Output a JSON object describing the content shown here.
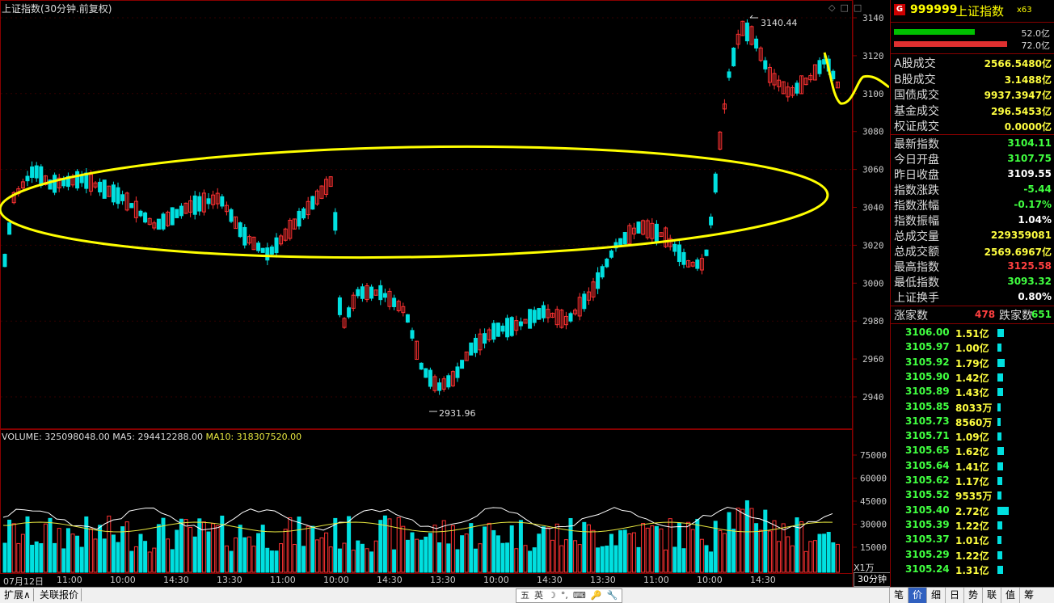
{
  "chart_title": "上证指数(30分钟.前复权)",
  "high_marker": "3140.44",
  "low_marker": "2931.96",
  "price_axis": [
    "3140",
    "3120",
    "3100",
    "3080",
    "3060",
    "3040",
    "3020",
    "3000",
    "2980",
    "2960",
    "2940"
  ],
  "volume_header": {
    "volume": "VOLUME: 325098048.00",
    "ma5": "MA5: 294412288.00",
    "ma10": "MA10: 318307520.00"
  },
  "volume_axis": [
    "75000",
    "60000",
    "45000",
    "30000",
    "15000"
  ],
  "volume_unit": "X1万",
  "time_labels": [
    "07月12日",
    "11:00",
    "10:00",
    "14:30",
    "13:30",
    "11:00",
    "10:00",
    "14:30",
    "13:30",
    "10:00",
    "14:30",
    "13:30",
    "11:00",
    "10:00",
    "14:30"
  ],
  "period_tab": "30分钟",
  "bottom_tabs": [
    "扩展∧",
    "关联报价"
  ],
  "ime_icons": [
    "五",
    "英",
    "☽",
    "°,",
    "⌨",
    "🔑",
    "🔧"
  ],
  "side_tabs": [
    {
      "label": "笔",
      "active": false
    },
    {
      "label": "价",
      "active": true
    },
    {
      "label": "细",
      "active": false
    },
    {
      "label": "日",
      "active": false
    },
    {
      "label": "势",
      "active": false
    },
    {
      "label": "联",
      "active": false
    },
    {
      "label": "值",
      "active": false
    },
    {
      "label": "筹",
      "active": false
    }
  ],
  "corner_icons": "◇□□",
  "panel": {
    "badge": "G",
    "code": "999999",
    "name": "上证指数",
    "suffix": "x63",
    "bar1_value": "52.0亿",
    "bar2_value": "72.0亿",
    "turnover": [
      {
        "label": "A股成交",
        "value": "2566.5480亿"
      },
      {
        "label": "B股成交",
        "value": "3.1488亿"
      },
      {
        "label": "国债成交",
        "value": "9937.3947亿"
      },
      {
        "label": "基金成交",
        "value": "296.5453亿"
      },
      {
        "label": "权证成交",
        "value": "0.0000亿"
      }
    ],
    "stats": [
      {
        "label": "最新指数",
        "value": "3104.11",
        "color": "g"
      },
      {
        "label": "今日开盘",
        "value": "3107.75",
        "color": "g"
      },
      {
        "label": "昨日收盘",
        "value": "3109.55",
        "color": "w"
      },
      {
        "label": "指数涨跌",
        "value": "-5.44",
        "color": "g"
      },
      {
        "label": "指数涨幅",
        "value": "-0.17%",
        "color": "g"
      },
      {
        "label": "指数振幅",
        "value": "1.04%",
        "color": "w"
      },
      {
        "label": "总成交量",
        "value": "229359081",
        "color": "y"
      },
      {
        "label": "总成交额",
        "value": "2569.6967亿",
        "color": "y"
      },
      {
        "label": "最高指数",
        "value": "3125.58",
        "color": "r"
      },
      {
        "label": "最低指数",
        "value": "3093.32",
        "color": "g"
      },
      {
        "label": "上证换手",
        "value": "0.80%",
        "color": "w"
      }
    ],
    "up_label": "涨家数",
    "up_count": "478",
    "down_label": "跌家数",
    "down_count": "651",
    "ticks": [
      {
        "price": "3106.00",
        "vol": "1.51亿",
        "bar": 1.51
      },
      {
        "price": "3105.97",
        "vol": "1.00亿",
        "bar": 1.0
      },
      {
        "price": "3105.92",
        "vol": "1.79亿",
        "bar": 1.79
      },
      {
        "price": "3105.90",
        "vol": "1.42亿",
        "bar": 1.42
      },
      {
        "price": "3105.89",
        "vol": "1.43亿",
        "bar": 1.43
      },
      {
        "price": "3105.85",
        "vol": "8033万",
        "bar": 0.8
      },
      {
        "price": "3105.73",
        "vol": "8560万",
        "bar": 0.86
      },
      {
        "price": "3105.71",
        "vol": "1.09亿",
        "bar": 1.09
      },
      {
        "price": "3105.65",
        "vol": "1.62亿",
        "bar": 1.62
      },
      {
        "price": "3105.64",
        "vol": "1.41亿",
        "bar": 1.41
      },
      {
        "price": "3105.62",
        "vol": "1.17亿",
        "bar": 1.17
      },
      {
        "price": "3105.52",
        "vol": "9535万",
        "bar": 0.95
      },
      {
        "price": "3105.40",
        "vol": "2.72亿",
        "bar": 2.72
      },
      {
        "price": "3105.39",
        "vol": "1.22亿",
        "bar": 1.22
      },
      {
        "price": "3105.37",
        "vol": "1.01亿",
        "bar": 1.01
      },
      {
        "price": "3105.29",
        "vol": "1.22亿",
        "bar": 1.22
      },
      {
        "price": "3105.24",
        "vol": "1.31亿",
        "bar": 1.31
      }
    ]
  },
  "colors": {
    "up": "#ff3232",
    "down": "#00e0e0",
    "highlight_yellow": "#ffff00",
    "highlight_magenta": "#e020e0"
  }
}
